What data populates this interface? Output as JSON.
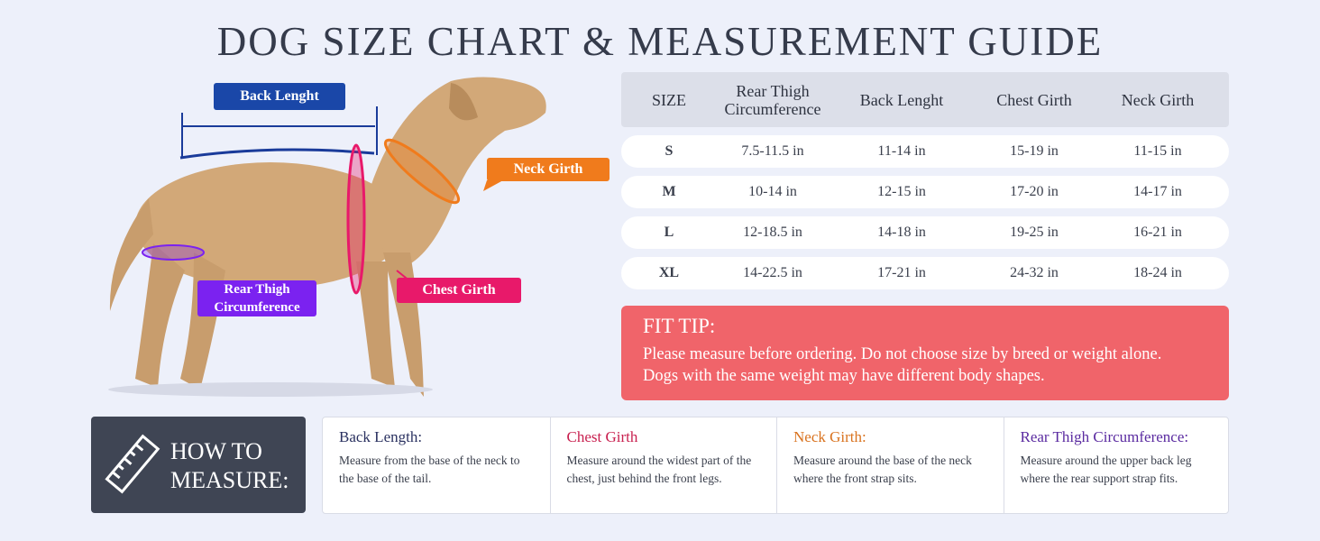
{
  "title": "DOG SIZE CHART & MEASUREMENT GUIDE",
  "diagram": {
    "back_length": "Back Lenght",
    "neck_girth": "Neck Girth",
    "chest_girth": "Chest Girth",
    "rear_thigh": "Rear Thigh Circumference"
  },
  "table": {
    "header": [
      "SIZE",
      "Rear Thigh Circumference",
      "Back Lenght",
      "Chest Girth",
      "Neck Girth"
    ],
    "rows": [
      [
        "S",
        "7.5-11.5 in",
        "11-14 in",
        "15-19 in",
        "11-15 in"
      ],
      [
        "M",
        "10-14 in",
        "12-15 in",
        "17-20 in",
        "14-17 in"
      ],
      [
        "L",
        "12-18.5 in",
        "14-18 in",
        "19-25 in",
        "16-21 in"
      ],
      [
        "XL",
        "14-22.5 in",
        "17-21 in",
        "24-32 in",
        "18-24 in"
      ]
    ]
  },
  "fit_tip": {
    "title": "FIT TIP:",
    "lines": [
      "Please measure before ordering. Do not choose size by breed or weight alone.",
      "Dogs with the same weight may have different body shapes."
    ]
  },
  "how_to": {
    "title": [
      "HOW TO",
      "MEASURE:"
    ],
    "items": [
      {
        "title": "Back Length:",
        "text": "Measure from the base of the neck to the base of the tail."
      },
      {
        "title": "Chest Girth",
        "text": "Measure around the widest part of the chest, just behind the front legs."
      },
      {
        "title": "Neck Girth:",
        "text": "Measure around the base of the neck where the front strap sits."
      },
      {
        "title": "Rear Thigh Circumference:",
        "text": "Measure around the upper back leg where the rear support strap fits."
      }
    ]
  }
}
